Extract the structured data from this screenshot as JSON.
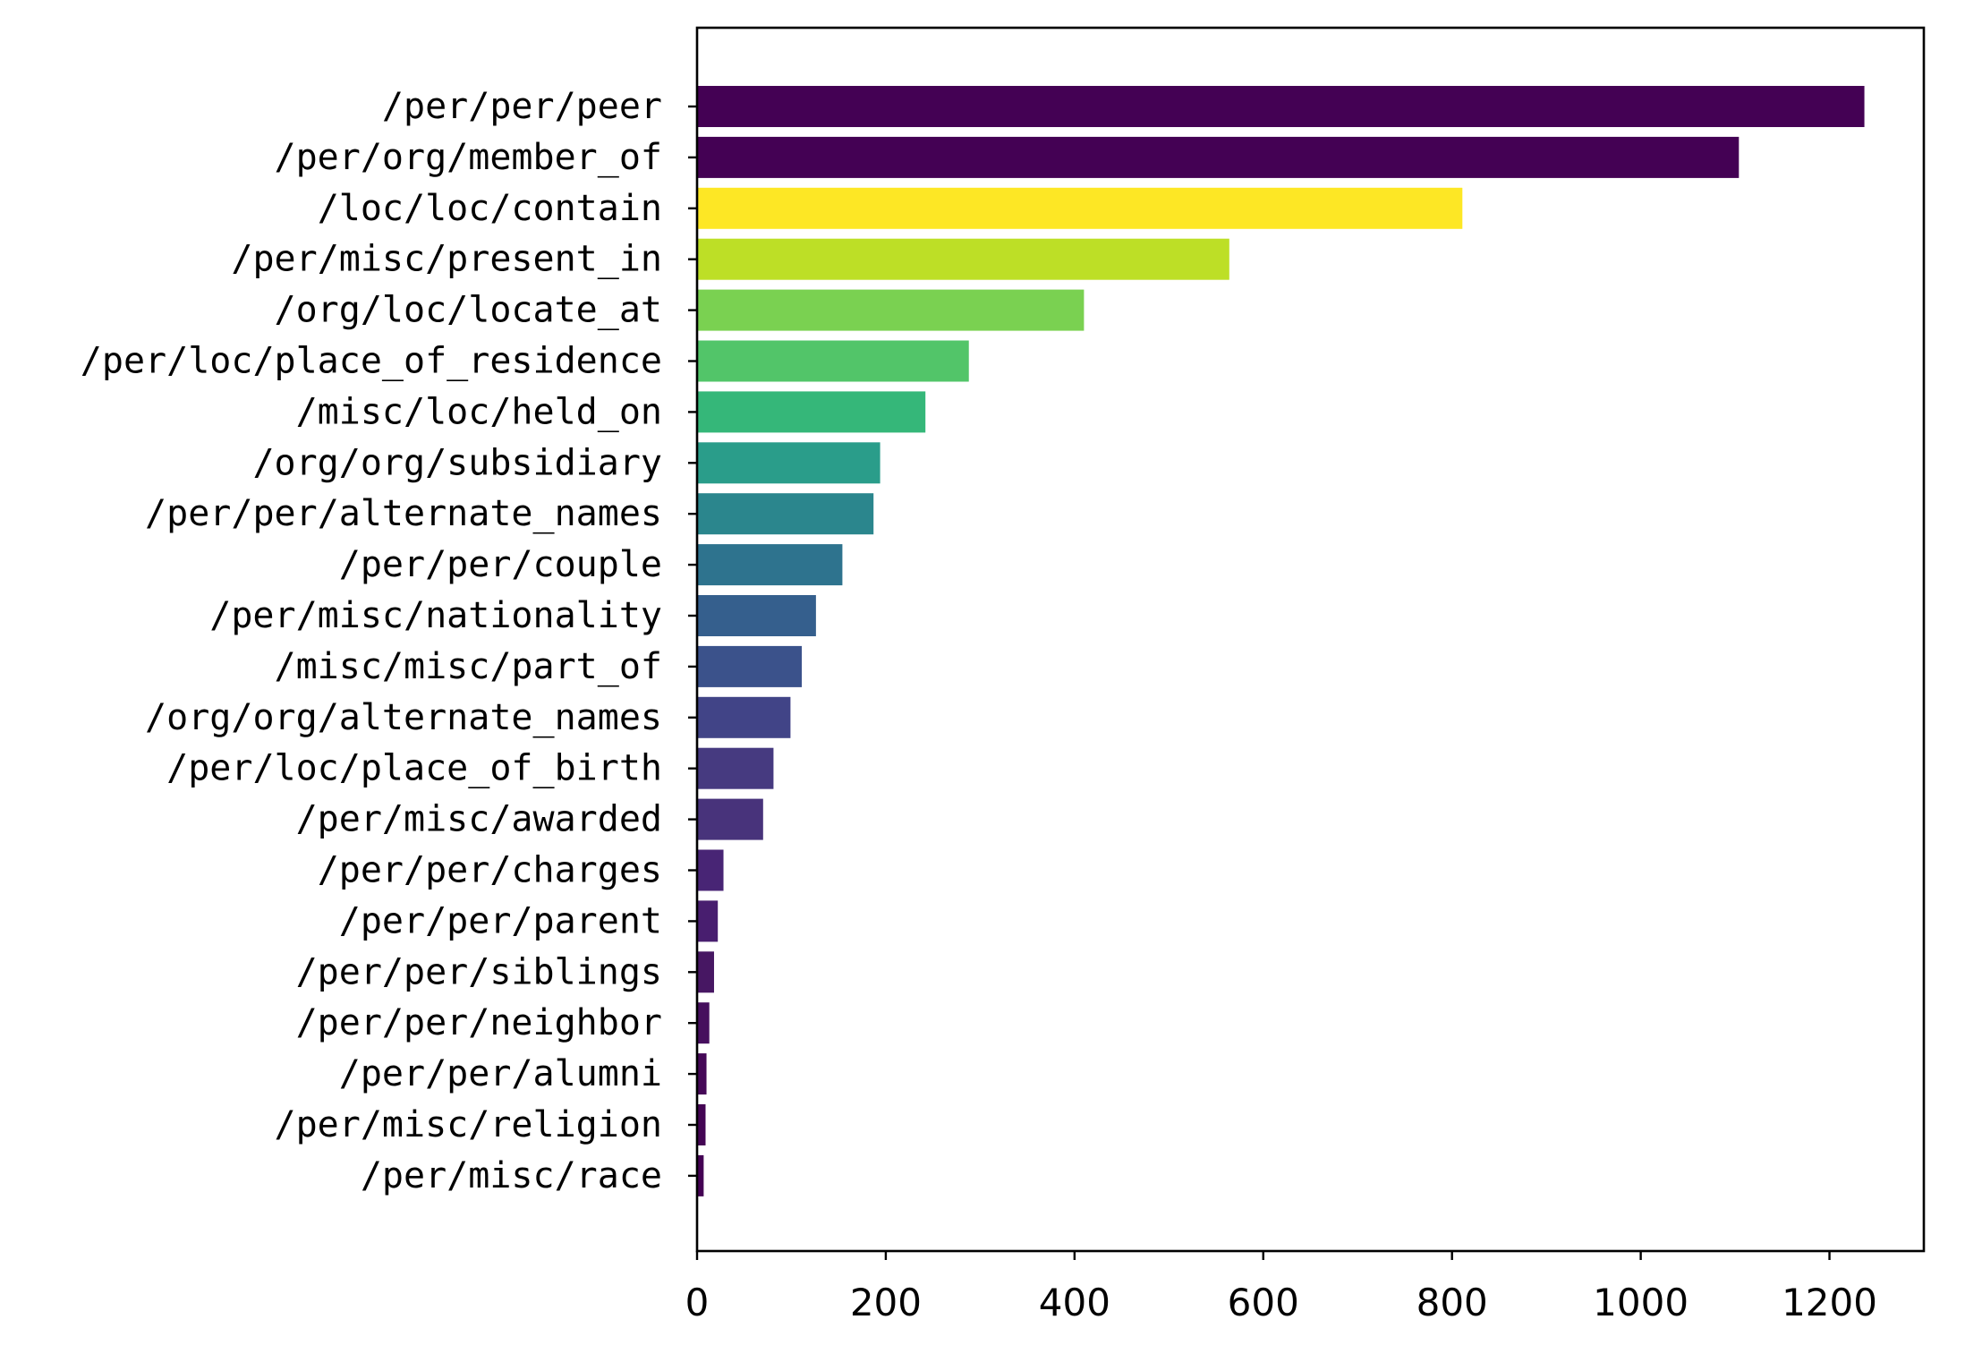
{
  "chart_data": {
    "type": "bar",
    "orientation": "horizontal",
    "title": "",
    "xlabel": "",
    "ylabel": "",
    "xlim": [
      0,
      1300
    ],
    "xticks": [
      0,
      200,
      400,
      600,
      800,
      1000,
      1200
    ],
    "xtick_labels": [
      "0",
      "200",
      "400",
      "600",
      "800",
      "1000",
      "1200"
    ],
    "grid": false,
    "legend": "none",
    "categories": [
      "/per/per/peer",
      "/per/org/member_of",
      "/loc/loc/contain",
      "/per/misc/present_in",
      "/org/loc/locate_at",
      "/per/loc/place_of_residence",
      "/misc/loc/held_on",
      "/org/org/subsidiary",
      "/per/per/alternate_names",
      "/per/per/couple",
      "/per/misc/nationality",
      "/misc/misc/part_of",
      "/org/org/alternate_names",
      "/per/loc/place_of_birth",
      "/per/misc/awarded",
      "/per/per/charges",
      "/per/per/parent",
      "/per/per/siblings",
      "/per/per/neighbor",
      "/per/per/alumni",
      "/per/misc/religion",
      "/per/misc/race"
    ],
    "values": [
      1237,
      1104,
      811,
      564,
      410,
      288,
      242,
      194,
      187,
      154,
      126,
      111,
      99,
      81,
      70,
      28,
      22,
      18,
      13,
      10,
      9,
      7
    ],
    "colors": [
      "#440154",
      "#440154",
      "#fde725",
      "#bddf26",
      "#7ad151",
      "#52c569",
      "#35b779",
      "#2a9d8a",
      "#2b868d",
      "#2e738e",
      "#355f8d",
      "#3b528b",
      "#414487",
      "#463a80",
      "#48337b",
      "#482575",
      "#481e6f",
      "#471763",
      "#460f5e",
      "#450857",
      "#440554",
      "#440154"
    ]
  }
}
